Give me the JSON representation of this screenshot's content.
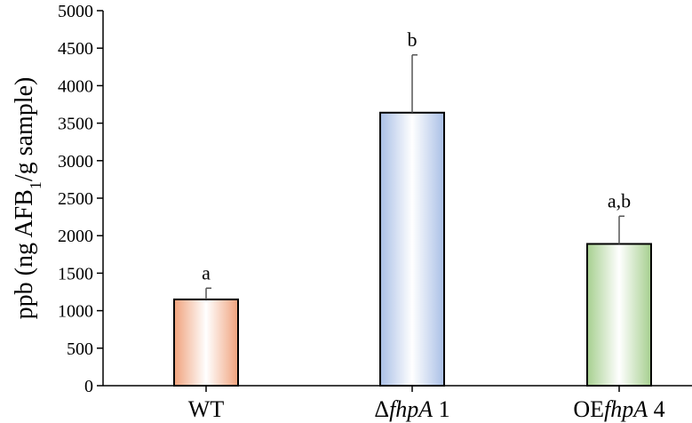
{
  "chart_data": {
    "type": "bar",
    "categories": [
      {
        "prefix": "",
        "italic": "",
        "suffix": "WT"
      },
      {
        "prefix": "Δ",
        "italic": "fhpA",
        "suffix": " 1"
      },
      {
        "prefix": "OE",
        "italic": "fhpA",
        "suffix": " 4"
      }
    ],
    "values": [
      1150,
      3640,
      1890
    ],
    "errors": [
      150,
      770,
      370
    ],
    "significance": [
      "a",
      "b",
      "a,b"
    ],
    "bar_colors": [
      "#f0a27c",
      "#a9bfe6",
      "#a6cf8f"
    ],
    "ylim": [
      0,
      5000
    ],
    "yticks": [
      0,
      500,
      1000,
      1500,
      2000,
      2500,
      3000,
      3500,
      4000,
      4500,
      5000
    ],
    "ylabel": {
      "pre": "ppb (ng AFB",
      "sub": "1",
      "post": "/g sample)"
    },
    "xlabel": "",
    "title": "",
    "grid": false
  }
}
